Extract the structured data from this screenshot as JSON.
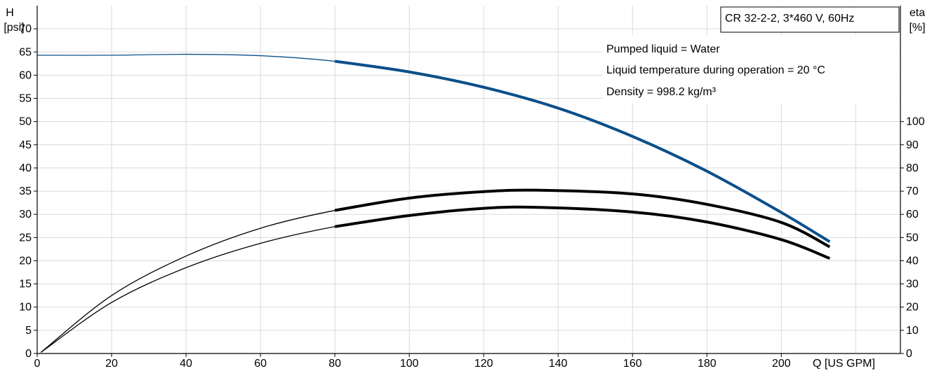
{
  "chart_data": {
    "type": "line",
    "model_label": "CR 32-2-2, 3*460 V, 60Hz",
    "notes": [
      "Pumped liquid = Water",
      "Liquid temperature during operation = 20 °C",
      "Density = 998.2 kg/m³"
    ],
    "x_axis": {
      "label": "Q [US GPM]",
      "min": 0,
      "max": 232,
      "ticks": [
        0,
        20,
        40,
        60,
        80,
        100,
        120,
        140,
        160,
        180,
        200
      ],
      "grid": true
    },
    "y_axis_left": {
      "label_line1": "H",
      "label_line2": "[psi]",
      "min": 0,
      "max": 75,
      "ticks": [
        0,
        5,
        10,
        15,
        20,
        25,
        30,
        35,
        40,
        45,
        50,
        55,
        60,
        65,
        70
      ],
      "grid": true
    },
    "y_axis_right": {
      "label_line1": "eta",
      "label_line2": "[%]",
      "min": 0,
      "max": 150,
      "ticks": [
        0,
        10,
        20,
        30,
        40,
        50,
        60,
        70,
        80,
        90,
        100
      ]
    },
    "series": [
      {
        "axis": "left",
        "color": "#0b4f8a",
        "duty_from_x": 80,
        "points": [
          [
            0,
            64.3
          ],
          [
            20,
            64.3
          ],
          [
            40,
            64.5
          ],
          [
            60,
            64.2
          ],
          [
            80,
            63.0
          ],
          [
            100,
            60.7
          ],
          [
            120,
            57.4
          ],
          [
            140,
            52.9
          ],
          [
            160,
            46.8
          ],
          [
            180,
            39.3
          ],
          [
            200,
            30.4
          ],
          [
            213,
            24.1
          ]
        ]
      },
      {
        "axis": "right",
        "color": "#000000",
        "duty_from_x": 80,
        "points": [
          [
            1,
            0.5
          ],
          [
            20,
            25
          ],
          [
            40,
            42
          ],
          [
            60,
            54
          ],
          [
            80,
            61.7
          ],
          [
            100,
            67
          ],
          [
            120,
            69.8
          ],
          [
            135,
            70.4
          ],
          [
            160,
            68.8
          ],
          [
            180,
            64.3
          ],
          [
            200,
            56.5
          ],
          [
            213,
            46
          ]
        ]
      },
      {
        "axis": "right",
        "color": "#000000",
        "duty_from_x": 80,
        "points": [
          [
            1,
            0.5
          ],
          [
            20,
            22
          ],
          [
            40,
            37
          ],
          [
            60,
            47.5
          ],
          [
            80,
            54.7
          ],
          [
            100,
            59.5
          ],
          [
            120,
            62.6
          ],
          [
            135,
            63
          ],
          [
            160,
            61
          ],
          [
            180,
            56.7
          ],
          [
            200,
            49.1
          ],
          [
            213,
            41
          ]
        ]
      }
    ]
  }
}
